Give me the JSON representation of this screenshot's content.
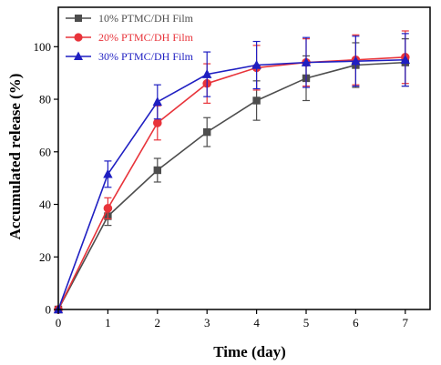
{
  "chart_data": {
    "type": "line",
    "xlabel": "Time (day)",
    "ylabel": "Accumulated release (%)",
    "xlim": [
      0,
      7.5
    ],
    "ylim": [
      0,
      115
    ],
    "xticks": [
      0,
      1,
      2,
      3,
      4,
      5,
      6,
      7
    ],
    "yticks": [
      0,
      20,
      40,
      60,
      80,
      100
    ],
    "legend_position": "top-left",
    "x": [
      0,
      1,
      2,
      3,
      4,
      5,
      6,
      7
    ],
    "series": [
      {
        "name": "10% PTMC/DH Film",
        "color": "#4d4d4d",
        "marker": "square",
        "values": [
          0,
          35.5,
          53,
          67.5,
          79.5,
          88,
          93,
          94
        ],
        "errors": [
          0,
          3.5,
          4.5,
          5.5,
          7.5,
          8.5,
          8.5,
          9
        ]
      },
      {
        "name": "20% PTMC/DH Film",
        "color": "#e8333a",
        "marker": "circle",
        "values": [
          0,
          38.5,
          71,
          86,
          92,
          94,
          95,
          96
        ],
        "errors": [
          0,
          4,
          6.5,
          7.5,
          8.5,
          9,
          9.5,
          10
        ]
      },
      {
        "name": "30% PTMC/DH Film",
        "color": "#1f1fc2",
        "marker": "triangle",
        "values": [
          0,
          51.5,
          79,
          89.5,
          93,
          94,
          94.5,
          95
        ],
        "errors": [
          0,
          5,
          6.5,
          8.5,
          9,
          9.5,
          9.5,
          10
        ]
      }
    ]
  }
}
